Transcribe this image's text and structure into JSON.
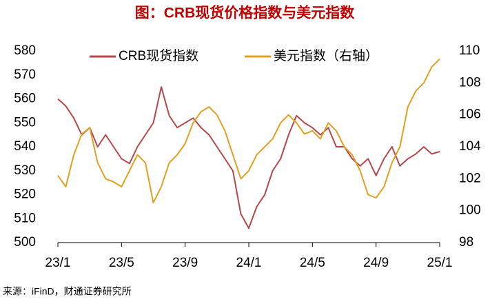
{
  "chart_data": {
    "type": "line",
    "title": "图：CRB现货价格指数与美元指数",
    "source": "来源：iFinD，财通证券研究所",
    "x": [
      0,
      0.5,
      1,
      1.5,
      2,
      2.5,
      3,
      3.5,
      4,
      4.5,
      5,
      5.5,
      6,
      6.5,
      7,
      7.5,
      8,
      8.5,
      9,
      9.5,
      10,
      10.5,
      11,
      11.5,
      12,
      12.5,
      13,
      13.5,
      14,
      14.5,
      15,
      15.5,
      16,
      16.5,
      17,
      17.5,
      18,
      18.5,
      19,
      19.5,
      20,
      20.5,
      21,
      21.5,
      22,
      22.5,
      23,
      23.5,
      24
    ],
    "xlim": [
      0,
      24
    ],
    "xticks": [
      {
        "value": 0,
        "label": "23/1"
      },
      {
        "value": 4,
        "label": "23/5"
      },
      {
        "value": 8,
        "label": "23/9"
      },
      {
        "value": 12,
        "label": "24/1"
      },
      {
        "value": 16,
        "label": "24/5"
      },
      {
        "value": 20,
        "label": "24/9"
      },
      {
        "value": 24,
        "label": "25/1"
      }
    ],
    "ylim": [
      500,
      580
    ],
    "yticks": [
      500,
      510,
      520,
      530,
      540,
      550,
      560,
      570,
      580
    ],
    "y2lim": [
      98,
      110
    ],
    "y2ticks": [
      98,
      100,
      102,
      104,
      106,
      108,
      110
    ],
    "legend": "top",
    "series": [
      {
        "name": "CRB现货指数",
        "color": "#b5474b",
        "axis": "y",
        "values": [
          560,
          557,
          552,
          545,
          548,
          540,
          545,
          540,
          535,
          533,
          540,
          545,
          550,
          565,
          553,
          548,
          550,
          552,
          548,
          545,
          540,
          535,
          530,
          512,
          506,
          515,
          520,
          530,
          535,
          545,
          553,
          550,
          548,
          545,
          548,
          540,
          540,
          535,
          532,
          535,
          528,
          535,
          540,
          532,
          535,
          537,
          540,
          537,
          538
        ]
      },
      {
        "name": "美元指数（右轴）",
        "color": "#e0a020",
        "axis": "y2",
        "values": [
          102.2,
          101.5,
          103.5,
          104.8,
          105.2,
          103.0,
          102.0,
          101.8,
          101.5,
          102.5,
          103.5,
          103.0,
          100.5,
          101.5,
          103,
          103.5,
          104.2,
          105.5,
          106.2,
          106.5,
          106,
          105,
          103.5,
          102,
          102.5,
          103.5,
          104.0,
          104.5,
          105.5,
          106,
          105.5,
          104.8,
          105,
          104.5,
          105.5,
          105,
          104,
          103.5,
          102.5,
          101,
          100.8,
          101.5,
          103,
          104,
          106.5,
          107.5,
          108.0,
          109,
          109.5
        ]
      }
    ]
  }
}
